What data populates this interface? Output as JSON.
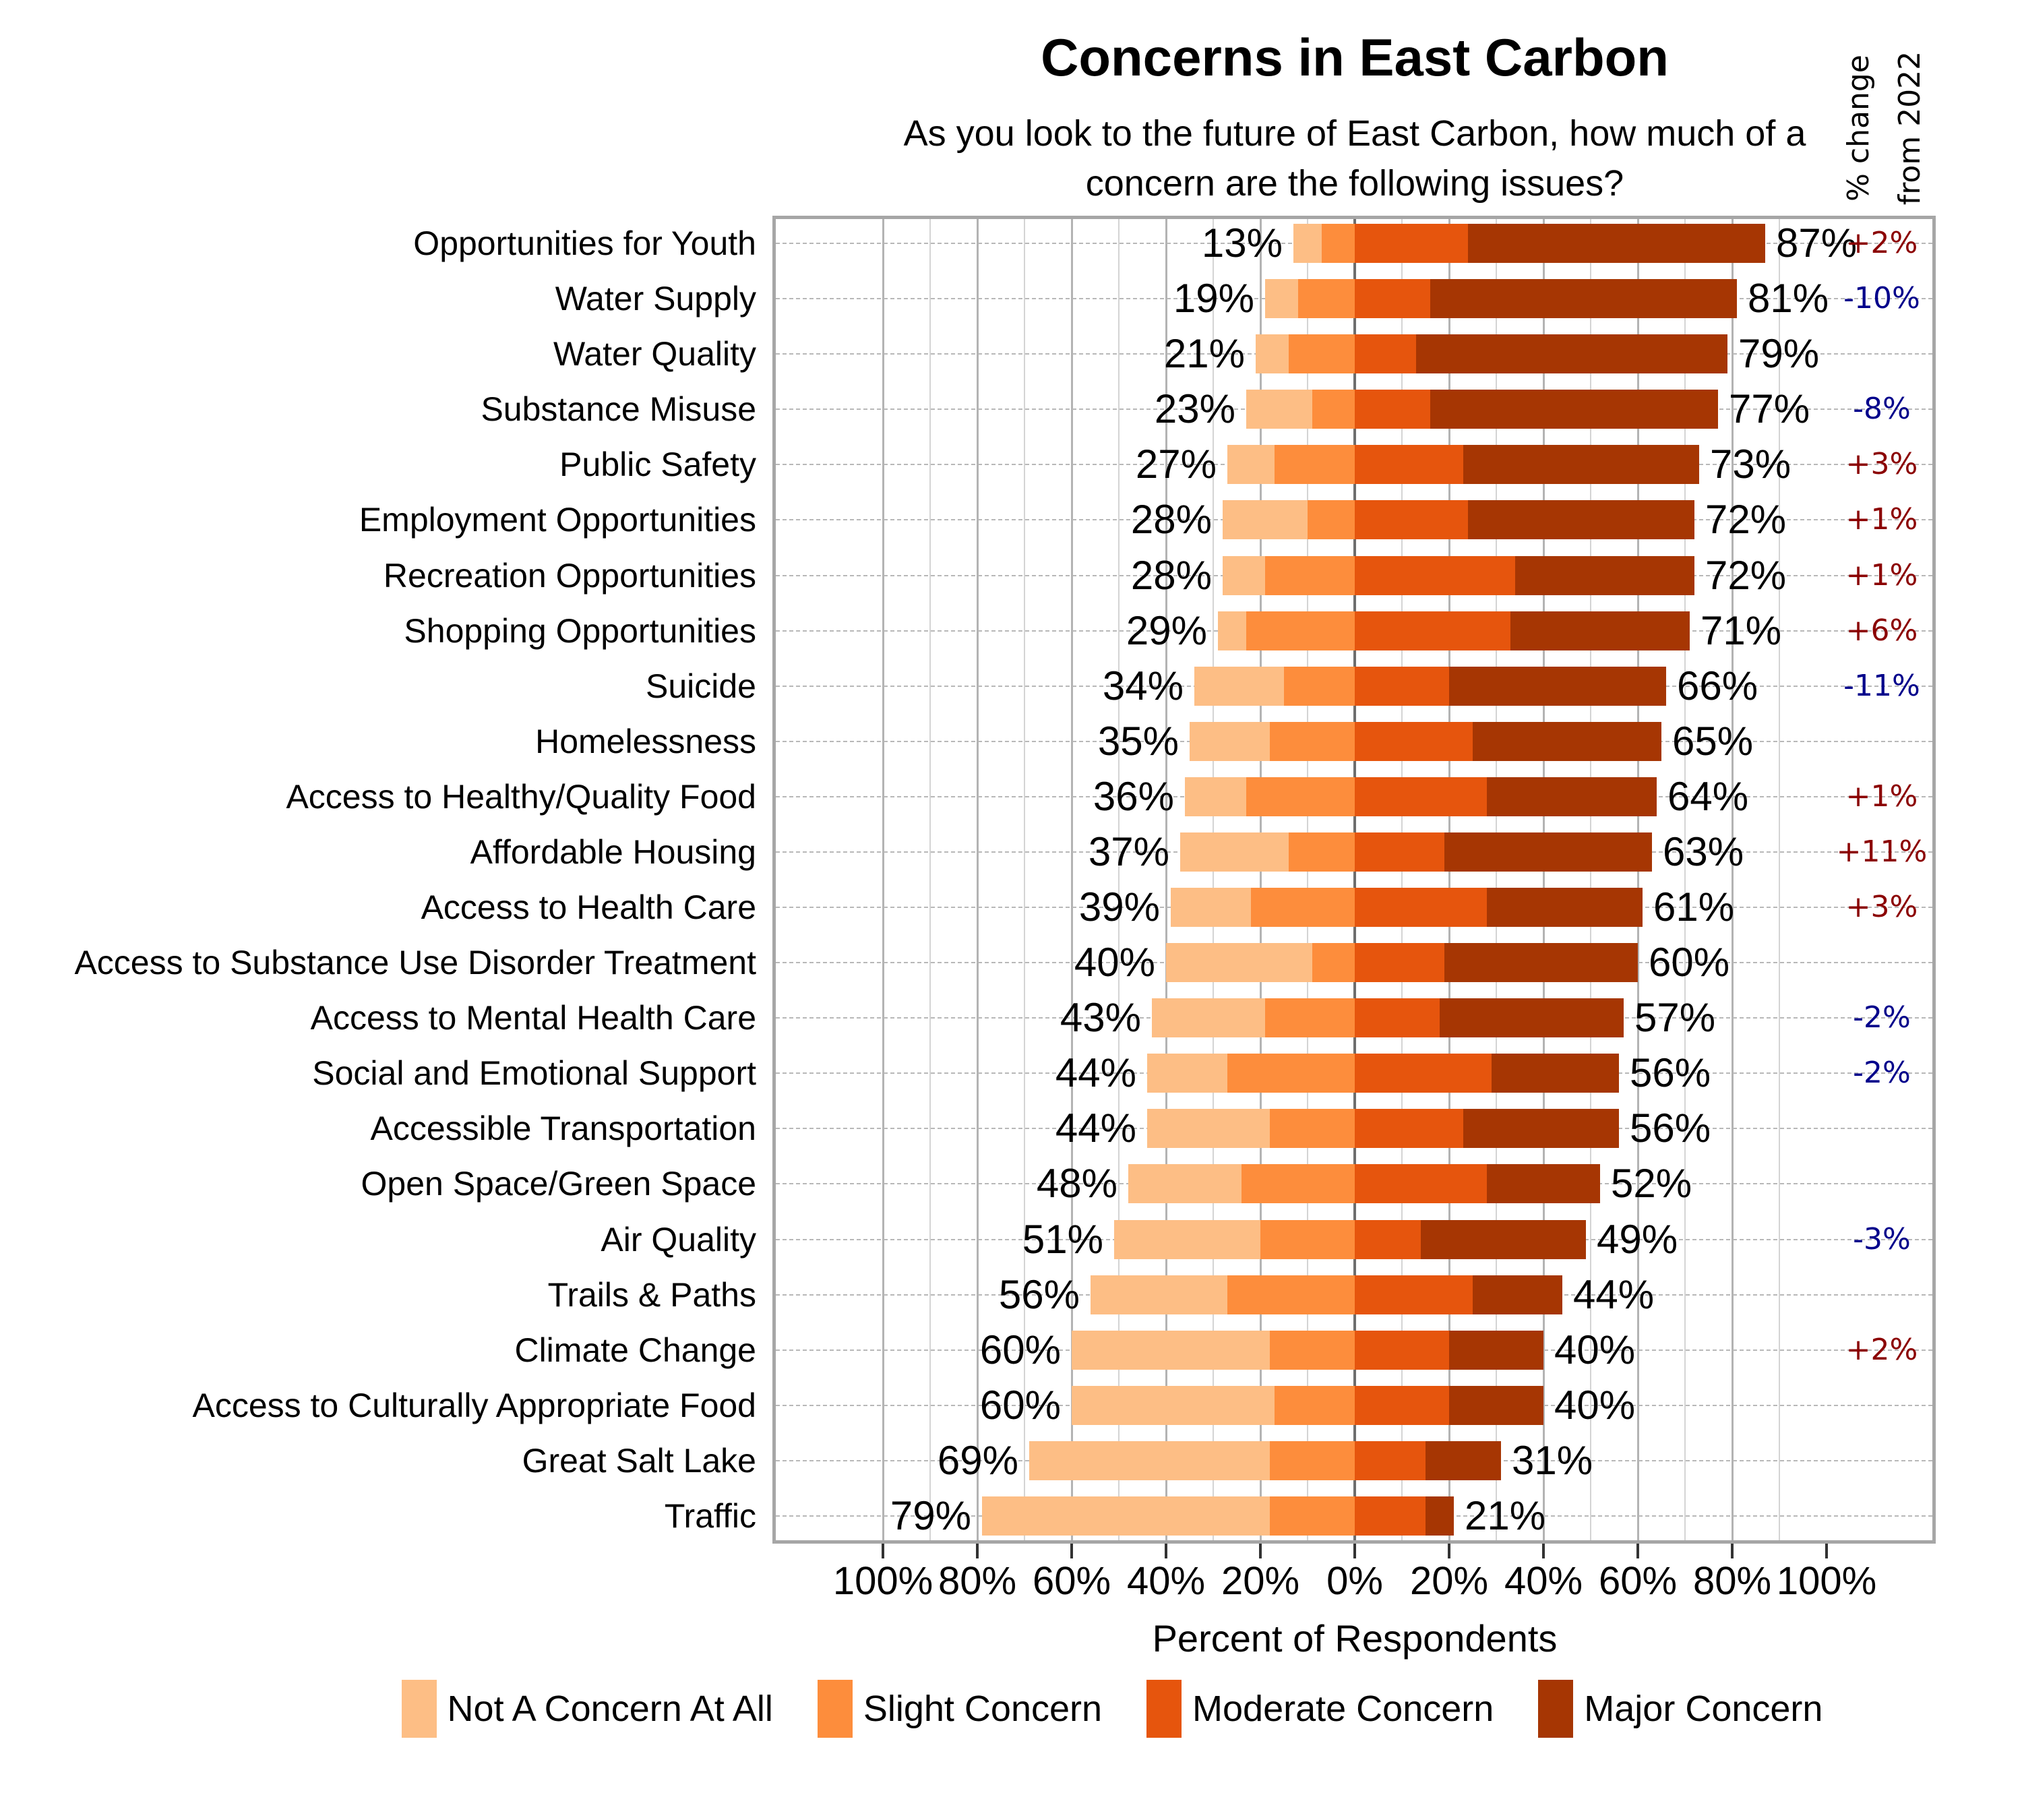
{
  "header": {
    "title": "Concerns in East Carbon",
    "subtitle_line1": "As you look to the future of East Carbon, how much of a",
    "subtitle_line2": "concern are the following issues?",
    "change_header_line1": "% change",
    "change_header_line2": "from 2022"
  },
  "axis": {
    "xlabel": "Percent of Respondents"
  },
  "colors": {
    "not_a_concern": "#FDBE85",
    "slight_concern": "#FD8D3C",
    "moderate_concern": "#E6550D",
    "major_concern": "#A63603",
    "positive_change": "#8B0000",
    "negative_change": "#00008B",
    "border": "#A6A6A6",
    "grid_major": "#B3B3B3",
    "grid_minor": "#D4D4D4",
    "grid_zero": "#6E6E6E",
    "row_dash": "#B8B8B8",
    "tick": "#333333"
  },
  "chart_data": {
    "type": "bar",
    "variant": "diverging-stacked-horizontal",
    "title": "Concerns in East Carbon",
    "subtitle": "As you look to the future of East Carbon, how much of a concern are the following issues?",
    "xlabel": "Percent of Respondents",
    "x_tick_labels": [
      "100%",
      "80%",
      "60%",
      "40%",
      "20%",
      "0%",
      "20%",
      "40%",
      "60%",
      "80%",
      "100%"
    ],
    "x_range_pct": [
      -100,
      100
    ],
    "grid": true,
    "legend_position": "bottom",
    "legend": [
      "Not A Concern At All",
      "Slight Concern",
      "Moderate Concern",
      "Major Concern"
    ],
    "categories": [
      "Opportunities for Youth",
      "Water Supply",
      "Water Quality",
      "Substance Misuse",
      "Public Safety",
      "Employment Opportunities",
      "Recreation Opportunities",
      "Shopping Opportunities",
      "Suicide",
      "Homelessness",
      "Access to Healthy/Quality Food",
      "Affordable Housing",
      "Access to Health Care",
      "Access to Substance Use Disorder Treatment",
      "Access to Mental Health Care",
      "Social and Emotional Support",
      "Accessible Transportation",
      "Open Space/Green Space",
      "Air Quality",
      "Trails & Paths",
      "Climate Change",
      "Access to Culturally Appropriate Food",
      "Great Salt Lake",
      "Traffic"
    ],
    "series": [
      {
        "name": "Not A Concern At All",
        "values": [
          6,
          7,
          7,
          14,
          10,
          18,
          9,
          6,
          19,
          17,
          13,
          23,
          17,
          31,
          24,
          17,
          26,
          24,
          31,
          29,
          42,
          43,
          51,
          61
        ]
      },
      {
        "name": "Slight Concern",
        "values": [
          7,
          12,
          14,
          9,
          17,
          10,
          19,
          23,
          15,
          18,
          23,
          14,
          22,
          9,
          19,
          27,
          18,
          24,
          20,
          27,
          18,
          17,
          18,
          18
        ]
      },
      {
        "name": "Moderate Concern",
        "values": [
          24,
          16,
          13,
          16,
          23,
          24,
          34,
          33,
          20,
          25,
          28,
          19,
          28,
          19,
          18,
          29,
          23,
          28,
          14,
          25,
          20,
          20,
          15,
          15
        ]
      },
      {
        "name": "Major Concern",
        "values": [
          63,
          65,
          66,
          61,
          50,
          48,
          38,
          38,
          46,
          40,
          36,
          44,
          33,
          41,
          39,
          27,
          33,
          24,
          35,
          19,
          20,
          20,
          16,
          6
        ]
      }
    ],
    "left_total_labels": [
      "13%",
      "19%",
      "21%",
      "23%",
      "27%",
      "28%",
      "28%",
      "29%",
      "34%",
      "35%",
      "36%",
      "37%",
      "39%",
      "40%",
      "43%",
      "44%",
      "44%",
      "48%",
      "51%",
      "56%",
      "60%",
      "60%",
      "69%",
      "79%"
    ],
    "right_total_labels": [
      "87%",
      "81%",
      "79%",
      "77%",
      "73%",
      "72%",
      "72%",
      "71%",
      "66%",
      "65%",
      "64%",
      "63%",
      "61%",
      "60%",
      "57%",
      "56%",
      "56%",
      "52%",
      "49%",
      "44%",
      "40%",
      "40%",
      "31%",
      "21%"
    ],
    "pct_change_from_2022": [
      "+2%",
      "-10%",
      "",
      "-8%",
      "+3%",
      "+1%",
      "+1%",
      "+6%",
      "-11%",
      "",
      "+1%",
      "+11%",
      "+3%",
      "",
      "-2%",
      "-2%",
      "",
      "",
      "-3%",
      "",
      "+2%",
      "",
      "",
      ""
    ]
  }
}
